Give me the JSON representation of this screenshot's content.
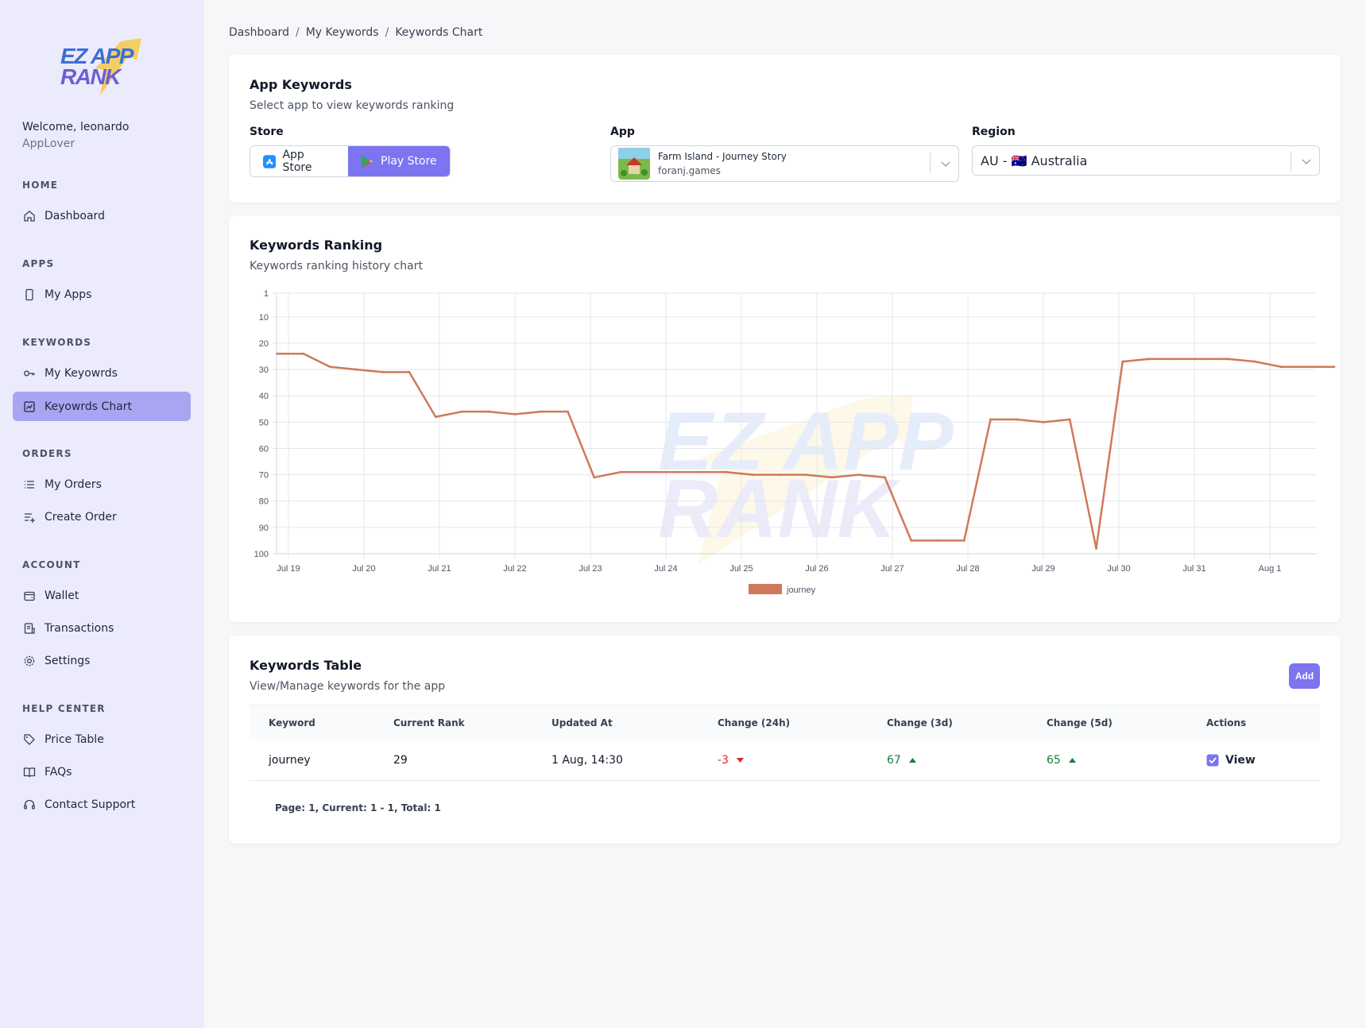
{
  "brand": {
    "logo_text_line1": "EZ APP",
    "logo_text_line2": "RANK"
  },
  "user": {
    "welcome": "Welcome, leonardo",
    "role": "AppLover"
  },
  "sidebar": {
    "sections": [
      {
        "title": "HOME",
        "items": [
          {
            "label": "Dashboard",
            "icon": "home-icon"
          }
        ]
      },
      {
        "title": "APPS",
        "items": [
          {
            "label": "My Apps",
            "icon": "phone-icon"
          }
        ]
      },
      {
        "title": "KEYWORDS",
        "items": [
          {
            "label": "My Keyowrds",
            "icon": "key-icon"
          },
          {
            "label": "Keyowrds Chart",
            "icon": "chart-icon",
            "active": true
          }
        ]
      },
      {
        "title": "ORDERS",
        "items": [
          {
            "label": "My Orders",
            "icon": "list-icon"
          },
          {
            "label": "Create Order",
            "icon": "list-add-icon"
          }
        ]
      },
      {
        "title": "ACCOUNT",
        "items": [
          {
            "label": "Wallet",
            "icon": "wallet-icon"
          },
          {
            "label": "Transactions",
            "icon": "receipt-icon"
          },
          {
            "label": "Settings",
            "icon": "gear-icon"
          }
        ]
      },
      {
        "title": "HELP CENTER",
        "items": [
          {
            "label": "Price Table",
            "icon": "tag-icon"
          },
          {
            "label": "FAQs",
            "icon": "book-icon"
          },
          {
            "label": "Contact Support",
            "icon": "headset-icon"
          }
        ]
      }
    ]
  },
  "breadcrumb": [
    "Dashboard",
    "My Keywords",
    "Keywords Chart"
  ],
  "app_keywords": {
    "title": "App Keywords",
    "subtitle": "Select app to view keywords ranking",
    "store_label": "Store",
    "app_store": "App Store",
    "play_store": "Play Store",
    "app_label": "App",
    "app_name": "Farm Island - Journey Story",
    "app_dev": "foranj.games",
    "region_label": "Region",
    "region_value": "AU - 🇦🇺 Australia"
  },
  "ranking": {
    "title": "Keywords Ranking",
    "subtitle": "Keywords ranking history chart"
  },
  "chart_data": {
    "type": "line",
    "y_ticks": [
      1,
      10,
      20,
      30,
      40,
      50,
      60,
      70,
      80,
      90,
      100
    ],
    "ylim": [
      1,
      100
    ],
    "y_reversed": true,
    "x_ticks": [
      "Jul 19",
      "Jul 20",
      "Jul 21",
      "Jul 22",
      "Jul 23",
      "Jul 24",
      "Jul 25",
      "Jul 26",
      "Jul 27",
      "Jul 28",
      "Jul 29",
      "Jul 30",
      "Jul 31",
      "Aug 1"
    ],
    "x_start": "Jul 19",
    "grid": true,
    "legend_position": "bottom",
    "series": [
      {
        "name": "journey",
        "color": "#d0795a",
        "x": [
          -0.15,
          0.2,
          0.55,
          0.9,
          1.25,
          1.6,
          1.95,
          2.3,
          2.65,
          3.0,
          3.35,
          3.7,
          4.05,
          4.4,
          4.75,
          5.1,
          5.45,
          5.8,
          6.15,
          6.5,
          6.85,
          7.2,
          7.55,
          7.9,
          8.25,
          8.6,
          8.95,
          9.3,
          9.65,
          10.0,
          10.35,
          10.7,
          11.05,
          11.4,
          11.75,
          12.1,
          12.45,
          12.8,
          13.15,
          13.5,
          13.85
        ],
        "values": [
          24,
          24,
          29,
          30,
          31,
          31,
          48,
          46,
          46,
          47,
          46,
          46,
          71,
          69,
          69,
          69,
          69,
          69,
          70,
          70,
          70,
          71,
          70,
          71,
          95,
          95,
          95,
          49,
          49,
          50,
          49,
          98,
          27,
          26,
          26,
          26,
          26,
          27,
          29,
          29,
          29
        ]
      }
    ]
  },
  "keywords_table": {
    "title": "Keywords Table",
    "subtitle": "View/Manage keywords for the app",
    "add_label": "Add",
    "columns": [
      "Keyword",
      "Current Rank",
      "Updated At",
      "Change (24h)",
      "Change (3d)",
      "Change (5d)",
      "Actions"
    ],
    "rows": [
      {
        "keyword": "journey",
        "rank": "29",
        "updated": "1 Aug, 14:30",
        "c24": "-3",
        "c3d": "67",
        "c5d": "65",
        "action": "View"
      }
    ],
    "pager": "Page: 1, Current: 1 - 1, Total: 1"
  },
  "colors": {
    "accent": "#7c74f0",
    "sidebar_bg": "#ecebfb",
    "active_nav": "#a8a5f3",
    "line": "#d0795a",
    "up": "#15803d",
    "down": "#dc2626"
  }
}
